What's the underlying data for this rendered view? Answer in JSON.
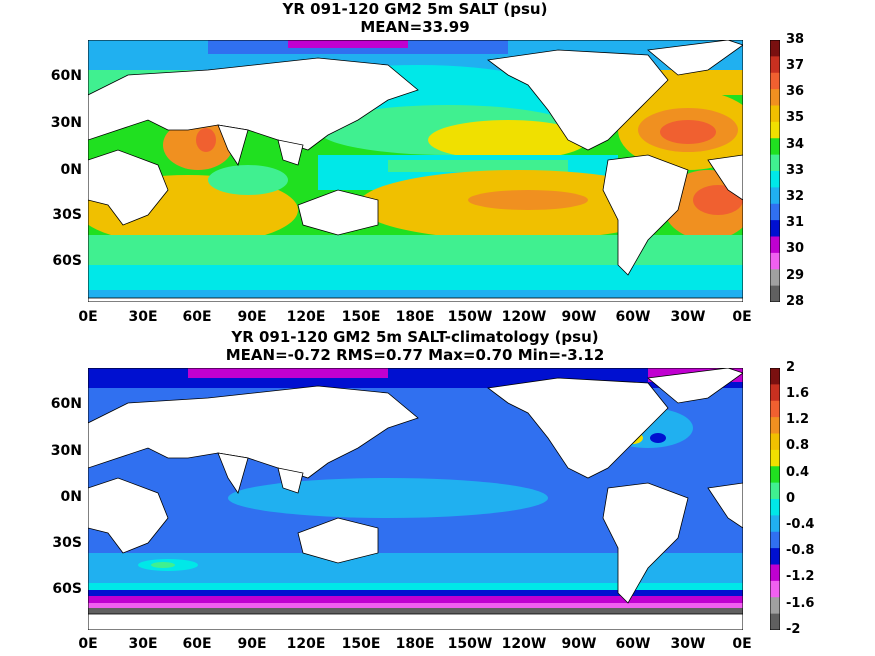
{
  "panels": [
    {
      "title_line1": "YR 091-120 GM2 5m SALT (psu)",
      "title_line2": "MEAN=33.99",
      "lat_labels": [
        "60N",
        "30N",
        "0N",
        "30S",
        "60S"
      ],
      "lon_labels": [
        "0E",
        "30E",
        "60E",
        "90E",
        "120E",
        "150E",
        "180E",
        "150W",
        "120W",
        "90W",
        "60W",
        "30W",
        "0E"
      ],
      "colorbar_labels": [
        "38",
        "37",
        "36",
        "35",
        "34",
        "33",
        "32",
        "31",
        "30",
        "29",
        "28"
      ],
      "colorbar_colors": [
        "#7a1010",
        "#c83020",
        "#f06030",
        "#f09020",
        "#f0c000",
        "#f0e000",
        "#20e020",
        "#40f090",
        "#00e8e8",
        "#20b0f0",
        "#3070f0",
        "#0010d0",
        "#c000d0",
        "#f060f0",
        "#a0a0a0",
        "#606060"
      ]
    },
    {
      "title_line1": "YR 091-120 GM2 5m SALT-climatology (psu)",
      "title_line2": "MEAN=-0.72   RMS=0.77   Max=0.70   Min=-3.12",
      "lat_labels": [
        "60N",
        "30N",
        "0N",
        "30S",
        "60S"
      ],
      "lon_labels": [
        "0E",
        "30E",
        "60E",
        "90E",
        "120E",
        "150E",
        "180E",
        "150W",
        "120W",
        "90W",
        "60W",
        "30W",
        "0E"
      ],
      "colorbar_labels": [
        "2",
        "1.6",
        "1.2",
        "0.8",
        "0.4",
        "0",
        "-0.4",
        "-0.8",
        "-1.2",
        "-1.6",
        "-2"
      ],
      "colorbar_colors": [
        "#7a1010",
        "#c83020",
        "#f06030",
        "#f09020",
        "#f0c000",
        "#f0e000",
        "#20e020",
        "#40f090",
        "#00e8e8",
        "#20b0f0",
        "#3070f0",
        "#0010d0",
        "#c000d0",
        "#f060f0",
        "#a0a0a0",
        "#606060"
      ]
    }
  ]
}
